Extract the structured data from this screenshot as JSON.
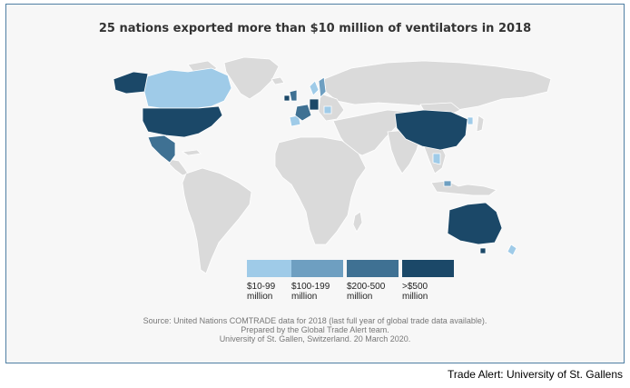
{
  "title": "25 nations exported more than $10 million of ventilators in 2018",
  "legend": [
    {
      "label_line1": "$10-99",
      "label_line2": "million",
      "color": "#9fcbe8"
    },
    {
      "label_line1": "$100-199",
      "label_line2": "million",
      "color": "#6e9fc1"
    },
    {
      "label_line1": "$200-500",
      "label_line2": "million",
      "color": "#3f7193"
    },
    {
      "label_line1": ">$500",
      "label_line2": "million",
      "color": "#1b4868"
    }
  ],
  "colors": {
    "no_data": "#dadada",
    "background": "#f7f7f7",
    "border": "#4f7fa3"
  },
  "source": {
    "line1": "Source: United Nations COMTRADE data for 2018 (last full year of global trade data available).",
    "line2": "Prepared by the Global Trade Alert team.",
    "line3": "University of St. Gallen, Switzerland. 20 March 2020."
  },
  "footer": "Trade Alert: University of St. Gallens"
}
